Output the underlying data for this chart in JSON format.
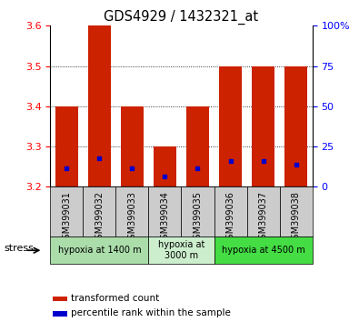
{
  "title": "GDS4929 / 1432321_at",
  "samples": [
    "GSM399031",
    "GSM399032",
    "GSM399033",
    "GSM399034",
    "GSM399035",
    "GSM399036",
    "GSM399037",
    "GSM399038"
  ],
  "bar_bottom": 3.2,
  "bar_tops": [
    3.4,
    3.6,
    3.4,
    3.3,
    3.4,
    3.5,
    3.5,
    3.5
  ],
  "blue_dots": [
    3.245,
    3.27,
    3.245,
    3.225,
    3.245,
    3.265,
    3.265,
    3.255
  ],
  "ylim": [
    3.2,
    3.6
  ],
  "yticks_left": [
    3.2,
    3.3,
    3.4,
    3.5,
    3.6
  ],
  "yticks_right": [
    0,
    25,
    50,
    75,
    100
  ],
  "bar_color": "#cc2200",
  "dot_color": "#0000cc",
  "bar_width": 0.7,
  "groups": [
    {
      "label": "hypoxia at 1400 m",
      "start": 0,
      "end": 3,
      "color": "#aaddaa"
    },
    {
      "label": "hypoxia at\n3000 m",
      "start": 3,
      "end": 5,
      "color": "#cceecc"
    },
    {
      "label": "hypoxia at 4500 m",
      "start": 5,
      "end": 8,
      "color": "#44dd44"
    }
  ]
}
